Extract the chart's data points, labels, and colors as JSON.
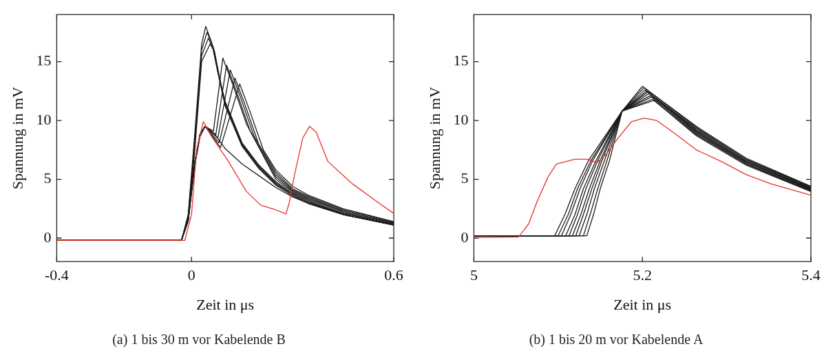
{
  "chart_data": [
    {
      "type": "line",
      "title": "(a) 1 bis 30 m vor Kabelende B",
      "xlabel": "Zeit in μs",
      "ylabel": "Spannung in mV",
      "xlim": [
        -0.4,
        0.6
      ],
      "ylim": [
        -2,
        19
      ],
      "xticks": [
        -0.4,
        0,
        0.6
      ],
      "yticks": [
        0,
        5,
        10,
        15
      ],
      "grid": false,
      "legend": false,
      "marker": "none",
      "line_style": "solid",
      "series": [
        {
          "color": "#1a1a1a",
          "x": [
            -0.4,
            -0.03,
            -0.01,
            0.01,
            0.03,
            0.042,
            0.06,
            0.08,
            0.1,
            0.15,
            0.2,
            0.25,
            0.3,
            0.35,
            0.45,
            0.6
          ],
          "values": [
            -0.2,
            -0.2,
            2,
            9,
            16.5,
            18,
            16.6,
            13.8,
            11.2,
            7.8,
            5.9,
            4.5,
            3.6,
            2.9,
            2,
            1.1
          ]
        },
        {
          "color": "#1a1a1a",
          "x": [
            -0.4,
            -0.03,
            -0.01,
            0.01,
            0.03,
            0.046,
            0.065,
            0.085,
            0.1,
            0.15,
            0.2,
            0.25,
            0.3,
            0.35,
            0.45,
            0.6
          ],
          "values": [
            -0.2,
            -0.2,
            1.8,
            8.5,
            16,
            17.5,
            16.2,
            13.4,
            11.4,
            7.9,
            6,
            4.6,
            3.7,
            3,
            2,
            1.1
          ]
        },
        {
          "color": "#1a1a1a",
          "x": [
            -0.4,
            -0.03,
            -0.01,
            0.01,
            0.03,
            0.05,
            0.065,
            0.085,
            0.1,
            0.15,
            0.2,
            0.25,
            0.3,
            0.35,
            0.45,
            0.6
          ],
          "values": [
            -0.2,
            -0.2,
            1.6,
            8,
            15.5,
            17,
            16,
            13.3,
            11.5,
            8,
            6.1,
            4.7,
            3.7,
            3,
            2.1,
            1.2
          ]
        },
        {
          "color": "#1a1a1a",
          "x": [
            -0.4,
            -0.03,
            -0.01,
            0.01,
            0.03,
            0.055,
            0.068,
            0.085,
            0.1,
            0.15,
            0.2,
            0.25,
            0.3,
            0.35,
            0.45,
            0.6
          ],
          "values": [
            -0.2,
            -0.2,
            1.5,
            7.6,
            15,
            16.5,
            15.9,
            13.3,
            11.6,
            8.1,
            6.2,
            4.8,
            3.8,
            3.1,
            2.1,
            1.2
          ]
        },
        {
          "color": "#1a1a1a",
          "x": [
            -0.4,
            -0.03,
            -0.01,
            0.01,
            0.025,
            0.04,
            0.065,
            0.093,
            0.123,
            0.163,
            0.25,
            0.3,
            0.35,
            0.45,
            0.6
          ],
          "values": [
            -0.2,
            -0.2,
            1.5,
            6.5,
            8.8,
            9.5,
            9.1,
            15.3,
            13,
            9.7,
            5,
            3.9,
            3.2,
            2.2,
            1.2
          ]
        },
        {
          "color": "#1a1a1a",
          "x": [
            -0.4,
            -0.03,
            -0.01,
            0.01,
            0.025,
            0.04,
            0.072,
            0.104,
            0.134,
            0.174,
            0.25,
            0.3,
            0.35,
            0.45,
            0.6
          ],
          "values": [
            -0.2,
            -0.2,
            1.5,
            6.5,
            8.8,
            9.5,
            8.8,
            14.7,
            12.4,
            9.1,
            5.2,
            4,
            3.3,
            2.3,
            1.3
          ]
        },
        {
          "color": "#1a1a1a",
          "x": [
            -0.4,
            -0.03,
            -0.01,
            0.01,
            0.025,
            0.04,
            0.078,
            0.115,
            0.145,
            0.185,
            0.25,
            0.3,
            0.35,
            0.45,
            0.6
          ],
          "values": [
            -0.2,
            -0.2,
            1.5,
            6.5,
            8.8,
            9.5,
            8.5,
            14.3,
            12,
            8.7,
            5.4,
            4.1,
            3.4,
            2.3,
            1.3
          ]
        },
        {
          "color": "#1a1a1a",
          "x": [
            -0.4,
            -0.03,
            -0.01,
            0.01,
            0.025,
            0.04,
            0.082,
            0.129,
            0.159,
            0.199,
            0.25,
            0.3,
            0.35,
            0.45,
            0.6
          ],
          "values": [
            -0.2,
            -0.2,
            1.5,
            6.5,
            8.8,
            9.5,
            8.1,
            13.6,
            11.3,
            8,
            5.6,
            4.2,
            3.5,
            2.4,
            1.4
          ]
        },
        {
          "color": "#1a1a1a",
          "x": [
            -0.4,
            -0.03,
            -0.01,
            0.01,
            0.025,
            0.04,
            0.086,
            0.143,
            0.173,
            0.213,
            0.25,
            0.3,
            0.35,
            0.45,
            0.6
          ],
          "values": [
            -0.2,
            -0.2,
            1.5,
            6.5,
            8.8,
            9.5,
            7.7,
            13.1,
            10.8,
            7.5,
            5.8,
            4.4,
            3.6,
            2.5,
            1.4
          ]
        },
        {
          "color": "#1a1a1a",
          "x": [
            -0.4,
            -0.03,
            -0.01,
            0.01,
            0.025,
            0.04,
            0.07,
            0.1,
            0.15,
            0.2,
            0.25,
            0.3,
            0.35,
            0.45,
            0.6
          ],
          "values": [
            -0.2,
            -0.2,
            1.4,
            6.2,
            8.6,
            9.5,
            8.8,
            7.6,
            6.3,
            5.3,
            4.3,
            3.5,
            2.9,
            2,
            1.1
          ]
        },
        {
          "color": "#e8302a",
          "x": [
            -0.4,
            -0.02,
            0,
            0.015,
            0.035,
            0.06,
            0.11,
            0.162,
            0.205,
            0.25,
            0.28,
            0.29,
            0.305,
            0.33,
            0.35,
            0.37,
            0.405,
            0.478,
            0.55,
            0.6
          ],
          "values": [
            -0.2,
            -0.2,
            2,
            7.5,
            9.9,
            8.6,
            6.5,
            4,
            2.8,
            2.4,
            2.05,
            3,
            5.3,
            8.5,
            9.5,
            9,
            6.5,
            4.6,
            3.1,
            2.1
          ]
        }
      ]
    },
    {
      "type": "line",
      "title": "(b) 1 bis 20 m vor Kabelende A",
      "xlabel": "Zeit in μs",
      "ylabel": "Spannung in mV",
      "xlim": [
        5,
        5.4
      ],
      "ylim": [
        -2,
        19
      ],
      "xticks": [
        5,
        5.2,
        5.4
      ],
      "yticks": [
        0,
        5,
        10,
        15
      ],
      "grid": false,
      "legend": false,
      "marker": "none",
      "line_style": "solid",
      "series": [
        {
          "color": "#1a1a1a",
          "x": [
            5,
            5.096,
            5.108,
            5.12,
            5.136,
            5.176,
            5.2,
            5.264,
            5.323,
            5.4
          ],
          "values": [
            0.2,
            0.2,
            2,
            4.2,
            6.6,
            10.8,
            12.9,
            9.5,
            6.8,
            4.4
          ]
        },
        {
          "color": "#1a1a1a",
          "x": [
            5,
            5.1,
            5.112,
            5.123,
            5.139,
            5.176,
            5.202,
            5.264,
            5.323,
            5.4
          ],
          "values": [
            0.2,
            0.2,
            2,
            4.2,
            6.6,
            10.8,
            12.8,
            9.4,
            6.7,
            4.35
          ]
        },
        {
          "color": "#1a1a1a",
          "x": [
            5,
            5.104,
            5.115,
            5.126,
            5.141,
            5.176,
            5.203,
            5.264,
            5.323,
            5.4
          ],
          "values": [
            0.2,
            0.2,
            2,
            4.2,
            6.6,
            10.8,
            12.6,
            9.3,
            6.7,
            4.3
          ]
        },
        {
          "color": "#1a1a1a",
          "x": [
            5,
            5.109,
            5.12,
            5.13,
            5.145,
            5.176,
            5.205,
            5.264,
            5.323,
            5.4
          ],
          "values": [
            0.2,
            0.2,
            2,
            4.2,
            6.6,
            10.8,
            12.5,
            9.2,
            6.6,
            4.25
          ]
        },
        {
          "color": "#1a1a1a",
          "x": [
            5,
            5.113,
            5.123,
            5.133,
            5.147,
            5.176,
            5.206,
            5.264,
            5.323,
            5.4
          ],
          "values": [
            0.2,
            0.2,
            2,
            4.2,
            6.6,
            10.8,
            12.4,
            9.1,
            6.5,
            4.2
          ]
        },
        {
          "color": "#1a1a1a",
          "x": [
            5,
            5.117,
            5.127,
            5.137,
            5.15,
            5.176,
            5.208,
            5.264,
            5.323,
            5.4
          ],
          "values": [
            0.2,
            0.2,
            2,
            4.2,
            6.6,
            10.8,
            12.3,
            9.1,
            6.5,
            4.15
          ]
        },
        {
          "color": "#1a1a1a",
          "x": [
            5,
            5.121,
            5.13,
            5.14,
            5.152,
            5.176,
            5.209,
            5.264,
            5.323,
            5.4
          ],
          "values": [
            0.2,
            0.2,
            2,
            4.2,
            6.6,
            10.8,
            12.1,
            9,
            6.4,
            4.1
          ]
        },
        {
          "color": "#1a1a1a",
          "x": [
            5,
            5.125,
            5.134,
            5.143,
            5.155,
            5.176,
            5.211,
            5.264,
            5.323,
            5.4
          ],
          "values": [
            0.2,
            0.2,
            2,
            4.2,
            6.6,
            10.8,
            12,
            8.9,
            6.3,
            4.05
          ]
        },
        {
          "color": "#1a1a1a",
          "x": [
            5,
            5.13,
            5.138,
            5.147,
            5.158,
            5.176,
            5.212,
            5.264,
            5.323,
            5.4
          ],
          "values": [
            0.2,
            0.2,
            2,
            4.2,
            6.6,
            10.8,
            11.8,
            8.8,
            6.3,
            4
          ]
        },
        {
          "color": "#1a1a1a",
          "x": [
            5,
            5.134,
            5.142,
            5.15,
            5.161,
            5.176,
            5.214,
            5.264,
            5.323,
            5.4
          ],
          "values": [
            0.2,
            0.2,
            2,
            4.2,
            6.6,
            10.8,
            11.7,
            8.7,
            6.2,
            3.95
          ]
        },
        {
          "color": "#e8302a",
          "x": [
            5,
            5.053,
            5.065,
            5.075,
            5.088,
            5.098,
            5.12,
            5.135,
            5.146,
            5.158,
            5.169,
            5.187,
            5.202,
            5.217,
            5.24,
            5.264,
            5.294,
            5.323,
            5.353,
            5.4
          ],
          "values": [
            0.05,
            0.1,
            1.2,
            3.1,
            5.2,
            6.3,
            6.7,
            6.7,
            6.4,
            7.2,
            8.3,
            9.9,
            10.2,
            10,
            8.8,
            7.5,
            6.5,
            5.4,
            4.6,
            3.65
          ]
        }
      ]
    }
  ]
}
